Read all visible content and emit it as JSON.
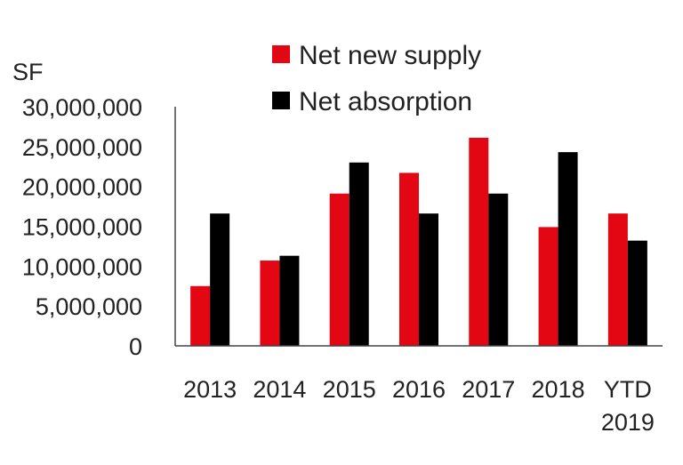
{
  "chart_data": {
    "type": "bar",
    "title": "",
    "ylabel": "SF",
    "xlabel": "",
    "categories": [
      "2013",
      "2014",
      "2015",
      "2016",
      "2017",
      "2018",
      "YTD 2019"
    ],
    "category_lines": [
      [
        "2013"
      ],
      [
        "2014"
      ],
      [
        "2015"
      ],
      [
        "2016"
      ],
      [
        "2017"
      ],
      [
        "2018"
      ],
      [
        "YTD",
        "2019"
      ]
    ],
    "series": [
      {
        "name": "Net new supply",
        "color": "#e30613",
        "values": [
          7500000,
          10700000,
          19100000,
          21700000,
          26100000,
          14900000,
          16600000
        ]
      },
      {
        "name": "Net absorption",
        "color": "#000000",
        "values": [
          16600000,
          11300000,
          23000000,
          16600000,
          19100000,
          24300000,
          13200000
        ]
      }
    ],
    "ylim": [
      0,
      30000000
    ],
    "yticks": [
      "0",
      "5,000,000",
      "10,000,000",
      "15,000,000",
      "20,000,000",
      "25,000,000",
      "30,000,000"
    ],
    "ytick_values": [
      0,
      5000000,
      10000000,
      15000000,
      20000000,
      25000000,
      30000000
    ],
    "grid": false,
    "legend": "top"
  }
}
